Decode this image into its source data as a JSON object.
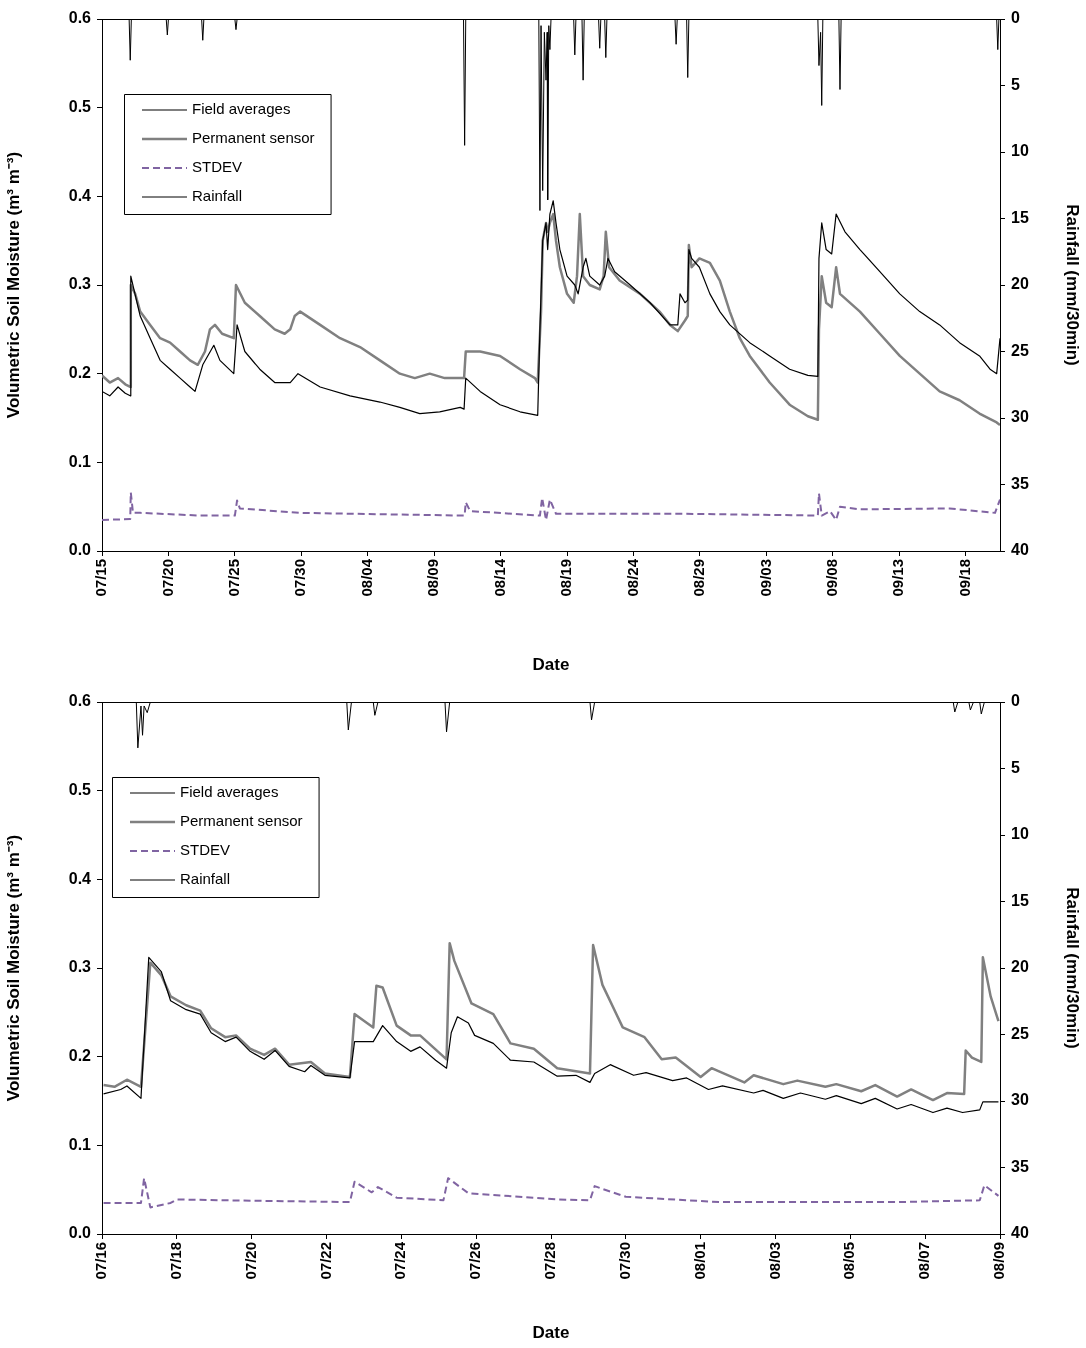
{
  "chart_data": [
    {
      "type": "line",
      "xlabel": "Date",
      "ylabel": "Volumetric Soil Moisture (m³ m⁻³)",
      "y2label": "Rainfall (mm/30min)",
      "xlim": [
        "--07-15",
        "--09-20T14:00"
      ],
      "xticks": [
        {
          "value": "--07-15",
          "label": "07/15"
        },
        {
          "value": "--07-20",
          "label": "07/20"
        },
        {
          "value": "--07-25",
          "label": "07/25"
        },
        {
          "value": "--07-30",
          "label": "07/30"
        },
        {
          "value": "--08-04",
          "label": "08/04"
        },
        {
          "value": "--08-09",
          "label": "08/09"
        },
        {
          "value": "--08-14",
          "label": "08/14"
        },
        {
          "value": "--08-19",
          "label": "08/19"
        },
        {
          "value": "--08-24",
          "label": "08/24"
        },
        {
          "value": "--08-29",
          "label": "08/29"
        },
        {
          "value": "--09-03",
          "label": "09/03"
        },
        {
          "value": "--09-08",
          "label": "09/08"
        },
        {
          "value": "--09-13",
          "label": "09/13"
        },
        {
          "value": "--09-18",
          "label": "09/18"
        }
      ],
      "ylim": [
        0,
        0.6
      ],
      "yticks": [
        {
          "value": 0,
          "label": "0.0"
        },
        0.1,
        0.2,
        0.3,
        0.4,
        0.5,
        0.6
      ],
      "y2lim": [
        40,
        0
      ],
      "y2ticks": [
        0,
        5,
        10,
        15,
        20,
        25,
        30,
        35,
        40
      ],
      "grid": false,
      "legend": "top left",
      "marker": "none",
      "series": [
        {
          "name": "Field averages",
          "color": "#000000",
          "x": [
            "--07-15T00:00",
            "--07-15T14:00",
            "--07-16T05:00",
            "--07-16T18:00",
            "--07-17T03:00",
            "--07-17T04:00",
            "--07-17T21:00",
            "--07-18T15:00",
            "--07-19T09:00",
            "--07-20T03:00",
            "--07-20T21:00",
            "--07-21T15:00",
            "--07-22T00:00",
            "--07-22T14:00",
            "--07-23T10:00",
            "--07-23T21:00",
            "--07-24T22:00",
            "--07-25T04:00",
            "--07-25T18:00",
            "--07-26T21:00",
            "--07-28T00:00",
            "--07-29T04:00",
            "--07-29T18:00",
            "--07-31T10:00",
            "--08-02T16:00",
            "--08-04T22:00",
            "--08-06T10:00",
            "--08-07T22:00",
            "--08-09T10:00",
            "--08-10T23:00",
            "--08-11T06:00",
            "--08-11T09:00",
            "--08-12T11:00",
            "--08-13T23:00",
            "--08-15T11:00",
            "--08-16T19:00",
            "--08-16T23:00",
            "--08-17T04:00",
            "--08-17T10:00",
            "--08-17T13:00",
            "--08-17T17:00",
            "--08-17T23:00",
            "--08-18T04:00",
            "--08-18T11:00",
            "--08-19T00:00",
            "--08-19T14:00",
            "--08-19T20:00",
            "--08-20T05:00",
            "--08-20T10:00",
            "--08-20T17:00",
            "--08-21T11:00",
            "--08-21T20:00",
            "--08-22T02:00",
            "--08-22T14:00",
            "--08-23T18:00",
            "--08-25T06:00",
            "--08-26T18:00",
            "--08-27T08:00",
            "--08-27T12:00",
            "--08-27T21:00",
            "--08-28T02:00",
            "--08-28T04:00",
            "--08-28T09:00",
            "--08-28T23:00",
            "--08-29T18:00",
            "--08-30T12:00",
            "--08-31T06:00",
            "--09-01T18:00",
            "--09-03T06:00",
            "--09-04T18:00",
            "--09-06T03:00",
            "--09-06T21:00",
            "--09-06T23:00",
            "--09-07T04:00",
            "--09-07T12:00",
            "--09-07T22:00",
            "--09-08T06:00",
            "--09-08T22:00",
            "--09-10T01:00",
            "--09-11T13:00",
            "--09-13T01:00",
            "--09-14T13:00",
            "--09-16T01:00",
            "--09-17T13:00",
            "--09-19T01:00",
            "--09-19T20:00",
            "--09-20T08:00",
            "--09-20T14:00"
          ],
          "values": [
            0.18,
            0.175,
            0.185,
            0.178,
            0.175,
            0.31,
            0.265,
            0.24,
            0.215,
            0.205,
            0.195,
            0.185,
            0.18,
            0.21,
            0.232,
            0.215,
            0.2,
            0.255,
            0.225,
            0.205,
            0.19,
            0.19,
            0.2,
            0.185,
            0.175,
            0.168,
            0.162,
            0.155,
            0.157,
            0.162,
            0.16,
            0.195,
            0.18,
            0.165,
            0.157,
            0.153,
            0.25,
            0.35,
            0.37,
            0.34,
            0.38,
            0.395,
            0.37,
            0.34,
            0.31,
            0.3,
            0.29,
            0.32,
            0.33,
            0.31,
            0.3,
            0.31,
            0.33,
            0.315,
            0.3,
            0.28,
            0.255,
            0.255,
            0.29,
            0.28,
            0.283,
            0.34,
            0.33,
            0.32,
            0.29,
            0.27,
            0.255,
            0.235,
            0.22,
            0.205,
            0.198,
            0.197,
            0.33,
            0.37,
            0.34,
            0.335,
            0.38,
            0.36,
            0.34,
            0.315,
            0.29,
            0.27,
            0.255,
            0.235,
            0.22,
            0.205,
            0.2,
            0.24
          ]
        },
        {
          "name": "Permanent sensor",
          "color": "#808080",
          "x": [
            "--07-15T00:00",
            "--07-15T14:00",
            "--07-16T05:00",
            "--07-16T18:00",
            "--07-17T03:00",
            "--07-17T04:00",
            "--07-17T12:00",
            "--07-17T21:00",
            "--07-18T15:00",
            "--07-19T09:00",
            "--07-20T03:00",
            "--07-20T21:00",
            "--07-21T15:00",
            "--07-22T05:00",
            "--07-22T18:00",
            "--07-23T03:00",
            "--07-23T12:00",
            "--07-24T01:00",
            "--07-24T22:00",
            "--07-25T02:00",
            "--07-25T18:00",
            "--07-26T21:00",
            "--07-28T00:00",
            "--07-28T18:00",
            "--07-29T04:00",
            "--07-29T12:00",
            "--07-29T22:00",
            "--07-31T10:00",
            "--08-01T22:00",
            "--08-03T10:00",
            "--08-04T22:00",
            "--08-06T10:00",
            "--08-07T13:00",
            "--08-08T16:00",
            "--08-09T19:00",
            "--08-11T06:00",
            "--08-11T09:00",
            "--08-12T11:00",
            "--08-13T23:00",
            "--08-15T11:00",
            "--08-16T14:00",
            "--08-16T19:00",
            "--08-17T01:00",
            "--08-17T04:00",
            "--08-17T10:00",
            "--08-17T13:00",
            "--08-17T17:00",
            "--08-17T23:00",
            "--08-18T04:00",
            "--08-18T11:00",
            "--08-19T00:00",
            "--08-19T12:00",
            "--08-19T18:00",
            "--08-19T23:00",
            "--08-20T05:00",
            "--08-20T17:00",
            "--08-21T11:00",
            "--08-21T18:00",
            "--08-21T22:00",
            "--08-22T04:00",
            "--08-22T23:00",
            "--08-24T12:00",
            "--08-25T23:00",
            "--08-26T18:00",
            "--08-27T08:00",
            "--08-27T21:00",
            "--08-28T02:00",
            "--08-28T04:00",
            "--08-28T09:00",
            "--08-28T23:00",
            "--08-29T18:00",
            "--08-30T12:00",
            "--08-31T06:00",
            "--09-01T00:00",
            "--09-01T18:00",
            "--09-03T06:00",
            "--09-04T18:00",
            "--09-06T03:00",
            "--09-06T21:00",
            "--09-06T23:00",
            "--09-07T04:00",
            "--09-07T12:00",
            "--09-07T22:00",
            "--09-08T06:00",
            "--09-08T13:00",
            "--09-10T01:00",
            "--09-11T13:00",
            "--09-13T01:00",
            "--09-14T13:00",
            "--09-16T01:00",
            "--09-17T13:00",
            "--09-19T01:00",
            "--09-20T08:00",
            "--09-20T14:00"
          ],
          "values": [
            0.198,
            0.19,
            0.195,
            0.188,
            0.185,
            0.3,
            0.29,
            0.27,
            0.255,
            0.24,
            0.235,
            0.225,
            0.215,
            0.21,
            0.225,
            0.25,
            0.255,
            0.245,
            0.24,
            0.3,
            0.28,
            0.265,
            0.25,
            0.245,
            0.25,
            0.265,
            0.27,
            0.255,
            0.24,
            0.23,
            0.215,
            0.2,
            0.195,
            0.2,
            0.195,
            0.195,
            0.225,
            0.225,
            0.22,
            0.205,
            0.195,
            0.19,
            0.27,
            0.35,
            0.37,
            0.36,
            0.37,
            0.38,
            0.35,
            0.32,
            0.29,
            0.28,
            0.31,
            0.38,
            0.31,
            0.3,
            0.295,
            0.31,
            0.36,
            0.32,
            0.305,
            0.29,
            0.27,
            0.255,
            0.248,
            0.26,
            0.265,
            0.345,
            0.32,
            0.33,
            0.325,
            0.305,
            0.27,
            0.24,
            0.22,
            0.19,
            0.165,
            0.152,
            0.148,
            0.25,
            0.31,
            0.28,
            0.275,
            0.32,
            0.29,
            0.27,
            0.245,
            0.22,
            0.2,
            0.18,
            0.17,
            0.155,
            0.145,
            0.142
          ]
        },
        {
          "name": "STDEV",
          "color": "#8064a2",
          "line_style": "dashed",
          "x": [
            "--07-15T00:00",
            "--07-17T03:00",
            "--07-17T04:00",
            "--07-17T08:00",
            "--07-17T21:00",
            "--07-22T09:00",
            "--07-25T00:00",
            "--07-25T04:00",
            "--07-25T09:00",
            "--07-29T22:00",
            "--08-10T23:00",
            "--08-11T07:00",
            "--08-11T09:00",
            "--08-11T17:00",
            "--08-16T23:00",
            "--08-17T03:00",
            "--08-17T10:00",
            "--08-17T17:00",
            "--08-18T04:00",
            "--08-19T23:00",
            "--08-27T12:00",
            "--09-06T21:00",
            "--09-06T23:00",
            "--09-07T04:00",
            "--09-07T19:00",
            "--09-08T06:00",
            "--09-08T13:00",
            "--09-10T01:00",
            "--09-16T19:00",
            "--09-20T05:00",
            "--09-20T14:00"
          ],
          "values": [
            0.035,
            0.036,
            0.066,
            0.043,
            0.043,
            0.04,
            0.04,
            0.057,
            0.048,
            0.043,
            0.04,
            0.04,
            0.055,
            0.045,
            0.04,
            0.06,
            0.035,
            0.058,
            0.042,
            0.042,
            0.042,
            0.04,
            0.065,
            0.04,
            0.045,
            0.035,
            0.05,
            0.047,
            0.048,
            0.043,
            0.058
          ]
        },
        {
          "name": "Rainfall",
          "color": "#000000",
          "axis": "y2",
          "x": [
            "--07-15T00:00",
            "--07-17T01:00",
            "--07-17T03:00",
            "--07-17T05:00",
            "--07-19T20:00",
            "--07-19T22:00",
            "--07-20T00:00",
            "--07-22T12:00",
            "--07-22T14:00",
            "--07-22T16:00",
            "--07-25T00:00",
            "--07-25T02:00",
            "--07-25T04:00",
            "--08-11T05:00",
            "--08-11T07:00",
            "--08-11T09:00",
            "--08-16T21:00",
            "--08-16T23:00",
            "--08-17T01:00",
            "--08-17T04:00",
            "--08-17T07:00",
            "--08-17T10:00",
            "--08-17T12:00",
            "--08-17T13:00",
            "--08-17T15:00",
            "--08-17T17:00",
            "--08-17T19:00",
            "--08-19T12:00",
            "--08-19T14:00",
            "--08-19T16:00",
            "--08-20T03:00",
            "--08-20T05:00",
            "--08-20T07:00",
            "--08-21T09:00",
            "--08-21T11:00",
            "--08-21T13:00",
            "--08-21T20:00",
            "--08-21T22:00",
            "--08-22T00:00",
            "--08-27T03:00",
            "--08-27T05:00",
            "--08-27T07:00",
            "--08-28T00:00",
            "--08-28T02:00",
            "--08-28T04:00",
            "--09-06T21:00",
            "--09-06T23:00",
            "--09-07T02:00",
            "--09-07T04:00",
            "--09-07T06:00",
            "--09-08T11:00",
            "--09-08T13:00",
            "--09-08T15:00",
            "--09-20T08:00",
            "--09-20T10:00",
            "--09-20T12:00",
            "--09-20T14:00"
          ],
          "values": [
            0,
            0,
            3.1,
            0,
            0,
            1.2,
            0,
            0,
            1.6,
            0,
            0,
            0.8,
            0,
            0,
            9.5,
            0,
            0,
            14.4,
            0.5,
            12.9,
            1,
            4.6,
            1,
            13.6,
            0.5,
            2.3,
            0,
            0,
            2.7,
            0,
            0,
            4.6,
            0,
            0,
            2.2,
            0,
            0,
            2.9,
            0,
            0,
            1.9,
            0,
            0,
            4.4,
            0,
            0,
            3.5,
            1,
            6.5,
            0,
            0,
            5.3,
            0,
            0,
            2.3,
            0,
            0
          ]
        }
      ]
    },
    {
      "type": "line",
      "xlabel": "Date",
      "ylabel": "Volumetric Soil Moisture (m³ m⁻³)",
      "y2label": "Rainfall (mm/30min)",
      "xlim": [
        "--07-16",
        "--08-09"
      ],
      "xticks": [
        {
          "value": "--07-16",
          "label": "07/16"
        },
        {
          "value": "--07-18",
          "label": "07/18"
        },
        {
          "value": "--07-20",
          "label": "07/20"
        },
        {
          "value": "--07-22",
          "label": "07/22"
        },
        {
          "value": "--07-24",
          "label": "07/24"
        },
        {
          "value": "--07-26",
          "label": "07/26"
        },
        {
          "value": "--07-28",
          "label": "07/28"
        },
        {
          "value": "--07-30",
          "label": "07/30"
        },
        {
          "value": "--08-01",
          "label": "08/01"
        },
        {
          "value": "--08-03",
          "label": "08/03"
        },
        {
          "value": "--08-05",
          "label": "08/05"
        },
        {
          "value": "--08-07",
          "label": "08/07"
        },
        {
          "value": "--08-09",
          "label": "08/09"
        }
      ],
      "ylim": [
        0,
        0.6
      ],
      "yticks": [
        {
          "value": 0,
          "label": "0.0"
        },
        0.1,
        0.2,
        0.3,
        0.4,
        0.5,
        0.6
      ],
      "y2lim": [
        40,
        0
      ],
      "y2ticks": [
        0,
        5,
        10,
        15,
        20,
        25,
        30,
        35,
        40
      ],
      "grid": false,
      "legend": "top left",
      "marker": "none",
      "series": [
        {
          "name": "Field averages",
          "color": "#000000",
          "x": [
            "--07-16T01:00",
            "--07-16T12:00",
            "--07-16T16:00",
            "--07-17T01:00",
            "--07-17T06:00",
            "--07-17T14:00",
            "--07-17T20:00",
            "--07-18T06:00",
            "--07-18T15:00",
            "--07-18T22:00",
            "--07-19T07:00",
            "--07-19T14:00",
            "--07-19T23:00",
            "--07-20T08:00",
            "--07-20T15:00",
            "--07-21T00:00",
            "--07-21T10:00",
            "--07-21T14:00",
            "--07-21T23:00",
            "--07-22T15:00",
            "--07-22T18:00",
            "--07-23T06:00",
            "--07-23T12:00",
            "--07-23T21:00",
            "--07-24T06:00",
            "--07-24T12:00",
            "--07-24T22:00",
            "--07-25T05:00",
            "--07-25T08:00",
            "--07-25T12:00",
            "--07-25T19:00",
            "--07-25T23:00",
            "--07-26T11:00",
            "--07-26T22:00",
            "--07-27T13:00",
            "--07-28T04:00",
            "--07-28T16:00",
            "--07-29T01:00",
            "--07-29T04:00",
            "--07-29T14:00",
            "--07-30T05:00",
            "--07-30T13:00",
            "--07-31T06:00",
            "--07-31T15:00",
            "--08-01T05:00",
            "--08-01T14:00",
            "--08-02T10:00",
            "--08-02T16:00",
            "--08-03T05:00",
            "--08-03T16:00",
            "--08-04T08:00",
            "--08-04T15:00",
            "--08-05T07:00",
            "--08-05T16:00",
            "--08-06T06:00",
            "--08-06T15:00",
            "--08-07T05:00",
            "--08-07T14:00",
            "--08-08T00:00",
            "--08-08T11:00",
            "--08-08T13:00",
            "--08-08T23:00"
          ],
          "values": [
            0.158,
            0.163,
            0.167,
            0.153,
            0.312,
            0.296,
            0.263,
            0.253,
            0.248,
            0.227,
            0.217,
            0.222,
            0.206,
            0.197,
            0.207,
            0.189,
            0.183,
            0.19,
            0.179,
            0.176,
            0.217,
            0.217,
            0.235,
            0.217,
            0.206,
            0.211,
            0.196,
            0.187,
            0.227,
            0.245,
            0.238,
            0.224,
            0.215,
            0.196,
            0.194,
            0.178,
            0.179,
            0.171,
            0.181,
            0.191,
            0.179,
            0.182,
            0.173,
            0.176,
            0.163,
            0.167,
            0.159,
            0.162,
            0.153,
            0.159,
            0.152,
            0.156,
            0.147,
            0.153,
            0.141,
            0.146,
            0.137,
            0.142,
            0.137,
            0.14,
            0.149,
            0.149
          ]
        },
        {
          "name": "Permanent sensor",
          "color": "#808080",
          "x": [
            "--07-16T01:00",
            "--07-16T08:00",
            "--07-16T16:00",
            "--07-17T01:00",
            "--07-17T07:00",
            "--07-17T14:00",
            "--07-17T20:00",
            "--07-18T06:00",
            "--07-18T15:00",
            "--07-18T22:00",
            "--07-19T07:00",
            "--07-19T14:00",
            "--07-19T23:00",
            "--07-20T08:00",
            "--07-20T15:00",
            "--07-21T00:00",
            "--07-21T14:00",
            "--07-21T23:00",
            "--07-22T15:00",
            "--07-22T18:00",
            "--07-23T06:00",
            "--07-23T08:00",
            "--07-23T12:00",
            "--07-23T21:00",
            "--07-24T06:00",
            "--07-24T12:00",
            "--07-25T05:00",
            "--07-25T07:00",
            "--07-25T10:00",
            "--07-25T21:00",
            "--07-26T11:00",
            "--07-26T22:00",
            "--07-27T13:00",
            "--07-28T04:00",
            "--07-29T01:00",
            "--07-29T03:00",
            "--07-29T09:00",
            "--07-29T22:00",
            "--07-30T12:00",
            "--07-30T23:00",
            "--07-31T08:00",
            "--08-01T00:00",
            "--08-01T07:00",
            "--08-02T04:00",
            "--08-02T10:00",
            "--08-03T05:00",
            "--08-03T14:00",
            "--08-04T08:00",
            "--08-04T15:00",
            "--08-05T07:00",
            "--08-05T16:00",
            "--08-06T06:00",
            "--08-06T15:00",
            "--08-07T05:00",
            "--08-07T14:00",
            "--08-08T01:00",
            "--08-08T02:00",
            "--08-08T06:00",
            "--08-08T12:00",
            "--08-08T13:00",
            "--08-08T18:00",
            "--08-08T23:00"
          ],
          "values": [
            0.168,
            0.166,
            0.174,
            0.166,
            0.306,
            0.292,
            0.268,
            0.258,
            0.252,
            0.232,
            0.222,
            0.224,
            0.209,
            0.202,
            0.209,
            0.191,
            0.194,
            0.181,
            0.177,
            0.248,
            0.233,
            0.28,
            0.278,
            0.235,
            0.224,
            0.224,
            0.197,
            0.328,
            0.308,
            0.26,
            0.248,
            0.215,
            0.209,
            0.187,
            0.181,
            0.326,
            0.281,
            0.233,
            0.222,
            0.197,
            0.199,
            0.177,
            0.187,
            0.171,
            0.179,
            0.169,
            0.173,
            0.166,
            0.169,
            0.161,
            0.168,
            0.155,
            0.163,
            0.151,
            0.159,
            0.158,
            0.207,
            0.199,
            0.194,
            0.312,
            0.268,
            0.24
          ]
        },
        {
          "name": "STDEV",
          "color": "#8064a2",
          "line_style": "dashed",
          "x": [
            "--07-16T01:00",
            "--07-17T01:00",
            "--07-17T03:00",
            "--07-17T07:00",
            "--07-17T20:00",
            "--07-18T00:00",
            "--07-19T07:00",
            "--07-22T15:00",
            "--07-22T18:00",
            "--07-23T05:00",
            "--07-23T09:00",
            "--07-23T21:00",
            "--07-25T03:00",
            "--07-25T06:00",
            "--07-25T19:00",
            "--07-28T04:00",
            "--07-29T01:00",
            "--07-29T04:00",
            "--07-29T12:00",
            "--07-30T00:00",
            "--08-01T12:00",
            "--08-06T06:00",
            "--08-08T11:00",
            "--08-08T14:00",
            "--08-08T23:00"
          ],
          "values": [
            0.035,
            0.035,
            0.063,
            0.03,
            0.035,
            0.039,
            0.038,
            0.036,
            0.059,
            0.047,
            0.053,
            0.041,
            0.038,
            0.063,
            0.046,
            0.039,
            0.038,
            0.054,
            0.049,
            0.042,
            0.036,
            0.036,
            0.038,
            0.055,
            0.043
          ]
        },
        {
          "name": "Rainfall",
          "color": "#000000",
          "axis": "y2",
          "x": [
            "--07-16T00:00",
            "--07-16T22:00",
            "--07-16T23:00",
            "--07-17T01:00",
            "--07-17T02:00",
            "--07-17T03:00",
            "--07-17T05:00",
            "--07-17T07:00",
            "--07-22T13:00",
            "--07-22T14:00",
            "--07-22T16:00",
            "--07-23T06:00",
            "--07-23T07:00",
            "--07-23T09:00",
            "--07-25T04:00",
            "--07-25T05:00",
            "--07-25T07:00",
            "--07-29T01:00",
            "--07-29T02:00",
            "--07-29T04:00",
            "--08-07T18:00",
            "--08-07T19:00",
            "--08-07T21:00",
            "--08-08T04:00",
            "--08-08T05:00",
            "--08-08T07:00",
            "--08-08T11:00",
            "--08-08T12:00",
            "--08-08T14:00",
            "--08-09T00:00"
          ],
          "values": [
            0,
            0,
            3.45,
            0.3,
            2.5,
            0.3,
            0.8,
            0,
            0,
            2.1,
            0,
            0,
            1,
            0,
            0,
            2.25,
            0,
            0,
            1.35,
            0,
            0,
            0.75,
            0,
            0,
            0.6,
            0,
            0,
            0.9,
            0,
            0
          ]
        }
      ]
    }
  ]
}
